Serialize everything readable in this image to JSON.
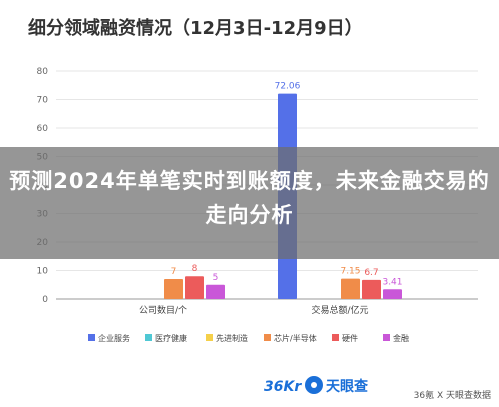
{
  "title": "细分领域融资情况（12月3日-12月9日）",
  "overlay_title": "预测2024年单笔实时到账额度，未来金融交易的走向分析",
  "logo": {
    "brand_mark": "36Kr",
    "brand_name": "天眼查"
  },
  "watermark": "36氪 X 天眼查数据",
  "colors": {
    "企业服务": "#5470e8",
    "医疗健康": "#4fc8d4",
    "先进制造": "#f5d04a",
    "芯片/半导体": "#f08c49",
    "硬件": "#ec5b5b",
    "金融": "#c957d8"
  },
  "chart_data": {
    "type": "bar",
    "ylim": [
      0,
      80
    ],
    "yticks": [
      "0",
      "10",
      "20",
      "30",
      "40",
      "50",
      "60",
      "70",
      "80"
    ],
    "grid": true,
    "legend_position": "bottom",
    "categories": [
      "公司数目/个",
      "交易总额/亿元"
    ],
    "series": [
      {
        "name": "企业服务",
        "values": [
          null,
          72.06
        ],
        "labels": [
          "",
          "72.06"
        ]
      },
      {
        "name": "医疗健康",
        "values": [
          null,
          null
        ],
        "labels": [
          "",
          ""
        ]
      },
      {
        "name": "先进制造",
        "values": [
          null,
          null
        ],
        "labels": [
          "",
          ""
        ]
      },
      {
        "name": "芯片/半导体",
        "values": [
          7,
          7.15
        ],
        "labels": [
          "7",
          "7.15"
        ]
      },
      {
        "name": "硬件",
        "values": [
          8,
          6.7
        ],
        "labels": [
          "8",
          "6.7"
        ]
      },
      {
        "name": "金融",
        "values": [
          5,
          3.41
        ],
        "labels": [
          "5",
          "3.41"
        ]
      }
    ]
  }
}
